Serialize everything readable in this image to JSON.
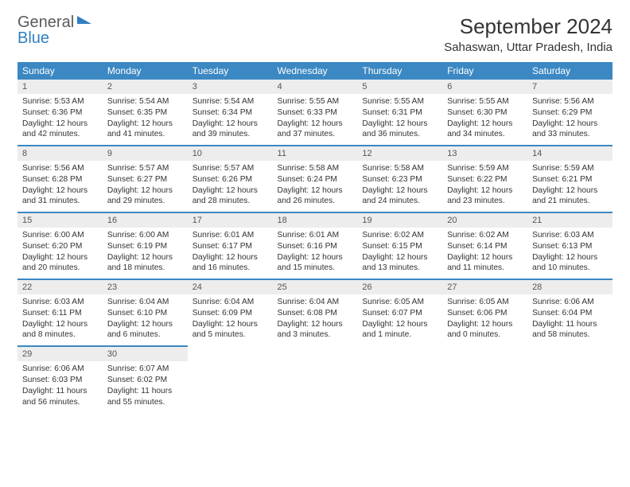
{
  "brand": {
    "line1": "General",
    "line2": "Blue"
  },
  "title": "September 2024",
  "location": "Sahaswan, Uttar Pradesh, India",
  "colors": {
    "header_bg": "#3b88c3",
    "header_text": "#ffffff",
    "daynum_bg": "#ededed",
    "row_divider": "#3b88c3",
    "brand_blue": "#2f7fbf",
    "text": "#333333",
    "background": "#ffffff"
  },
  "weekdays": [
    "Sunday",
    "Monday",
    "Tuesday",
    "Wednesday",
    "Thursday",
    "Friday",
    "Saturday"
  ],
  "layout": {
    "start_weekday": 0,
    "days_in_month": 30,
    "rows": 5,
    "cols": 7
  },
  "days": [
    {
      "n": 1,
      "sunrise": "5:53 AM",
      "sunset": "6:36 PM",
      "daylight": "12 hours and 42 minutes."
    },
    {
      "n": 2,
      "sunrise": "5:54 AM",
      "sunset": "6:35 PM",
      "daylight": "12 hours and 41 minutes."
    },
    {
      "n": 3,
      "sunrise": "5:54 AM",
      "sunset": "6:34 PM",
      "daylight": "12 hours and 39 minutes."
    },
    {
      "n": 4,
      "sunrise": "5:55 AM",
      "sunset": "6:33 PM",
      "daylight": "12 hours and 37 minutes."
    },
    {
      "n": 5,
      "sunrise": "5:55 AM",
      "sunset": "6:31 PM",
      "daylight": "12 hours and 36 minutes."
    },
    {
      "n": 6,
      "sunrise": "5:55 AM",
      "sunset": "6:30 PM",
      "daylight": "12 hours and 34 minutes."
    },
    {
      "n": 7,
      "sunrise": "5:56 AM",
      "sunset": "6:29 PM",
      "daylight": "12 hours and 33 minutes."
    },
    {
      "n": 8,
      "sunrise": "5:56 AM",
      "sunset": "6:28 PM",
      "daylight": "12 hours and 31 minutes."
    },
    {
      "n": 9,
      "sunrise": "5:57 AM",
      "sunset": "6:27 PM",
      "daylight": "12 hours and 29 minutes."
    },
    {
      "n": 10,
      "sunrise": "5:57 AM",
      "sunset": "6:26 PM",
      "daylight": "12 hours and 28 minutes."
    },
    {
      "n": 11,
      "sunrise": "5:58 AM",
      "sunset": "6:24 PM",
      "daylight": "12 hours and 26 minutes."
    },
    {
      "n": 12,
      "sunrise": "5:58 AM",
      "sunset": "6:23 PM",
      "daylight": "12 hours and 24 minutes."
    },
    {
      "n": 13,
      "sunrise": "5:59 AM",
      "sunset": "6:22 PM",
      "daylight": "12 hours and 23 minutes."
    },
    {
      "n": 14,
      "sunrise": "5:59 AM",
      "sunset": "6:21 PM",
      "daylight": "12 hours and 21 minutes."
    },
    {
      "n": 15,
      "sunrise": "6:00 AM",
      "sunset": "6:20 PM",
      "daylight": "12 hours and 20 minutes."
    },
    {
      "n": 16,
      "sunrise": "6:00 AM",
      "sunset": "6:19 PM",
      "daylight": "12 hours and 18 minutes."
    },
    {
      "n": 17,
      "sunrise": "6:01 AM",
      "sunset": "6:17 PM",
      "daylight": "12 hours and 16 minutes."
    },
    {
      "n": 18,
      "sunrise": "6:01 AM",
      "sunset": "6:16 PM",
      "daylight": "12 hours and 15 minutes."
    },
    {
      "n": 19,
      "sunrise": "6:02 AM",
      "sunset": "6:15 PM",
      "daylight": "12 hours and 13 minutes."
    },
    {
      "n": 20,
      "sunrise": "6:02 AM",
      "sunset": "6:14 PM",
      "daylight": "12 hours and 11 minutes."
    },
    {
      "n": 21,
      "sunrise": "6:03 AM",
      "sunset": "6:13 PM",
      "daylight": "12 hours and 10 minutes."
    },
    {
      "n": 22,
      "sunrise": "6:03 AM",
      "sunset": "6:11 PM",
      "daylight": "12 hours and 8 minutes."
    },
    {
      "n": 23,
      "sunrise": "6:04 AM",
      "sunset": "6:10 PM",
      "daylight": "12 hours and 6 minutes."
    },
    {
      "n": 24,
      "sunrise": "6:04 AM",
      "sunset": "6:09 PM",
      "daylight": "12 hours and 5 minutes."
    },
    {
      "n": 25,
      "sunrise": "6:04 AM",
      "sunset": "6:08 PM",
      "daylight": "12 hours and 3 minutes."
    },
    {
      "n": 26,
      "sunrise": "6:05 AM",
      "sunset": "6:07 PM",
      "daylight": "12 hours and 1 minute."
    },
    {
      "n": 27,
      "sunrise": "6:05 AM",
      "sunset": "6:06 PM",
      "daylight": "12 hours and 0 minutes."
    },
    {
      "n": 28,
      "sunrise": "6:06 AM",
      "sunset": "6:04 PM",
      "daylight": "11 hours and 58 minutes."
    },
    {
      "n": 29,
      "sunrise": "6:06 AM",
      "sunset": "6:03 PM",
      "daylight": "11 hours and 56 minutes."
    },
    {
      "n": 30,
      "sunrise": "6:07 AM",
      "sunset": "6:02 PM",
      "daylight": "11 hours and 55 minutes."
    }
  ],
  "labels": {
    "sunrise": "Sunrise:",
    "sunset": "Sunset:",
    "daylight": "Daylight:"
  }
}
